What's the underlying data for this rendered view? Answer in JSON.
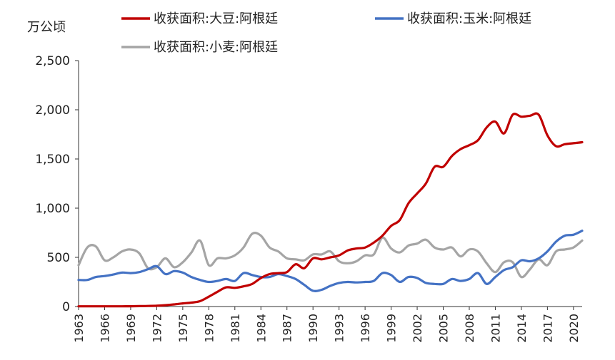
{
  "chart_data": {
    "type": "line",
    "unit_label": "万公顷",
    "ylim": [
      0,
      2500
    ],
    "yticks": [
      0,
      500,
      1000,
      1500,
      2000,
      2500
    ],
    "ytick_labels": [
      "0",
      "500",
      "1,000",
      "1,500",
      "2,000",
      "2,500"
    ],
    "xlim": [
      1963,
      2021
    ],
    "xticks": [
      1963,
      1966,
      1969,
      1972,
      1975,
      1978,
      1981,
      1984,
      1987,
      1990,
      1993,
      1996,
      1999,
      2002,
      2005,
      2008,
      2011,
      2014,
      2017,
      2020
    ],
    "x": [
      1963,
      1964,
      1965,
      1966,
      1967,
      1968,
      1969,
      1970,
      1971,
      1972,
      1973,
      1974,
      1975,
      1976,
      1977,
      1978,
      1979,
      1980,
      1981,
      1982,
      1983,
      1984,
      1985,
      1986,
      1987,
      1988,
      1989,
      1990,
      1991,
      1992,
      1993,
      1994,
      1995,
      1996,
      1997,
      1998,
      1999,
      2000,
      2001,
      2002,
      2003,
      2004,
      2005,
      2006,
      2007,
      2008,
      2009,
      2010,
      2011,
      2012,
      2013,
      2014,
      2015,
      2016,
      2017,
      2018,
      2019,
      2020,
      2021
    ],
    "series": [
      {
        "name": "收获面积:大豆:阿根廷",
        "color": "#C00000",
        "values": [
          2,
          2,
          2,
          2,
          2,
          2,
          3,
          4,
          6,
          8,
          14,
          22,
          32,
          40,
          55,
          100,
          150,
          195,
          190,
          205,
          230,
          290,
          330,
          340,
          350,
          430,
          390,
          490,
          480,
          500,
          520,
          570,
          590,
          600,
          650,
          720,
          820,
          880,
          1050,
          1150,
          1250,
          1420,
          1420,
          1530,
          1600,
          1640,
          1690,
          1820,
          1880,
          1760,
          1950,
          1930,
          1940,
          1950,
          1740,
          1630,
          1650,
          1660,
          1670
        ]
      },
      {
        "name": "收获面积:玉米:阿根廷",
        "color": "#4472C4",
        "values": [
          270,
          270,
          300,
          310,
          325,
          345,
          340,
          350,
          380,
          410,
          330,
          360,
          345,
          300,
          270,
          250,
          260,
          280,
          260,
          340,
          320,
          300,
          300,
          330,
          310,
          280,
          220,
          160,
          170,
          210,
          240,
          250,
          245,
          250,
          260,
          340,
          320,
          250,
          300,
          290,
          240,
          230,
          230,
          280,
          260,
          280,
          340,
          230,
          300,
          370,
          400,
          470,
          460,
          490,
          560,
          660,
          720,
          730,
          770
        ]
      },
      {
        "name": "收获面积:小麦:阿根廷",
        "color": "#A5A5A5",
        "values": [
          420,
          600,
          610,
          470,
          500,
          560,
          580,
          540,
          390,
          400,
          490,
          400,
          450,
          550,
          670,
          420,
          490,
          490,
          520,
          600,
          740,
          720,
          600,
          560,
          490,
          480,
          470,
          530,
          530,
          560,
          460,
          440,
          460,
          520,
          530,
          700,
          590,
          550,
          620,
          640,
          680,
          600,
          580,
          600,
          510,
          580,
          560,
          440,
          350,
          450,
          450,
          300,
          380,
          480,
          420,
          560,
          580,
          600,
          670
        ]
      }
    ]
  }
}
